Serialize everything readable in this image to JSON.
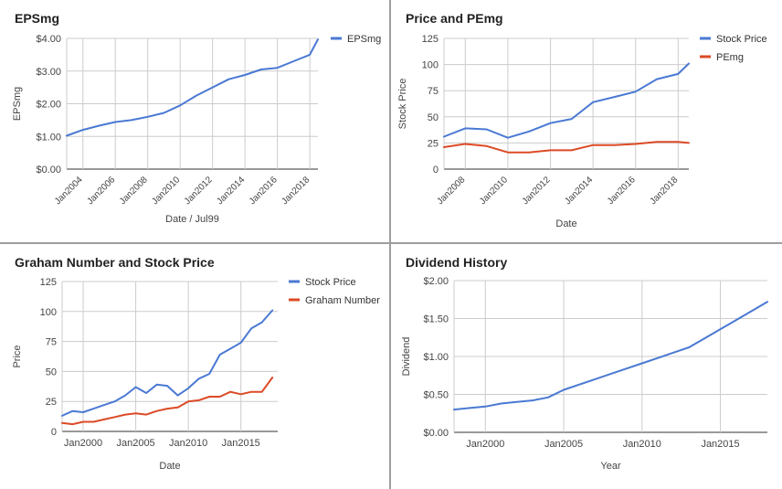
{
  "charts": [
    {
      "id": "eps",
      "title": "EPSmg",
      "chart_data": {
        "type": "line",
        "title": "EPSmg",
        "xlabel": "Date / Jul99",
        "ylabel": "EPSmg",
        "x_axis_kind": "date",
        "xlim": [
          2003.0,
          2018.5
        ],
        "ylim": [
          0,
          4
        ],
        "y_ticks": [
          0,
          1,
          2,
          3,
          4
        ],
        "y_tick_labels": [
          "$0.00",
          "$1.00",
          "$2.00",
          "$3.00",
          "$4.00"
        ],
        "x_ticks": [
          2004,
          2006,
          2008,
          2010,
          2012,
          2014,
          2016,
          2018
        ],
        "x_tick_labels": [
          "Jan2004",
          "Jan2006",
          "Jan2008",
          "Jan2010",
          "Jan2012",
          "Jan2014",
          "Jan2016",
          "Jan2018"
        ],
        "grid": true,
        "legend_position": "right",
        "series": [
          {
            "name": "EPSmg",
            "color": "#4a79d3",
            "x": [
              2003.0,
              2004.0,
              2005.0,
              2006.0,
              2007.0,
              2008.0,
              2009.0,
              2010.0,
              2011.0,
              2012.0,
              2013.0,
              2014.0,
              2015.0,
              2016.0,
              2017.0,
              2018.0,
              2018.5
            ],
            "y": [
              1.02,
              1.2,
              1.33,
              1.44,
              1.5,
              1.6,
              1.72,
              1.95,
              2.25,
              2.5,
              2.75,
              2.88,
              3.05,
              3.1,
              3.3,
              3.5,
              3.97
            ]
          }
        ]
      }
    },
    {
      "id": "price_pe",
      "title": "Price and PEmg",
      "chart_data": {
        "type": "line",
        "title": "Price and PEmg",
        "xlabel": "Date",
        "ylabel": "Stock Price",
        "x_axis_kind": "date",
        "xlim": [
          2007.0,
          2018.5
        ],
        "ylim": [
          0,
          125
        ],
        "y_ticks": [
          0,
          25,
          50,
          75,
          100,
          125
        ],
        "y_tick_labels": [
          "0",
          "25",
          "50",
          "75",
          "100",
          "125"
        ],
        "x_ticks": [
          2008,
          2010,
          2012,
          2014,
          2016,
          2018
        ],
        "x_tick_labels": [
          "Jan2008",
          "Jan2010",
          "Jan2012",
          "Jan2014",
          "Jan2016",
          "Jan2018"
        ],
        "grid": true,
        "legend_position": "right",
        "series": [
          {
            "name": "Stock Price",
            "color": "#4a79d3",
            "x": [
              2007.0,
              2008.0,
              2009.0,
              2010.0,
              2011.0,
              2012.0,
              2013.0,
              2014.0,
              2015.0,
              2016.0,
              2017.0,
              2018.0,
              2018.5
            ],
            "y": [
              31,
              39,
              38,
              30,
              36,
              44,
              48,
              64,
              69,
              74,
              86,
              91,
              101
            ]
          },
          {
            "name": "PEmg",
            "color": "#dc4a26",
            "x": [
              2007.0,
              2008.0,
              2009.0,
              2010.0,
              2011.0,
              2012.0,
              2013.0,
              2014.0,
              2015.0,
              2016.0,
              2017.0,
              2018.0,
              2018.5
            ],
            "y": [
              21,
              24,
              22,
              16,
              16,
              18,
              18,
              23,
              23,
              24,
              26,
              26,
              25
            ]
          }
        ]
      }
    },
    {
      "id": "graham",
      "title": "Graham Number and Stock Price",
      "chart_data": {
        "type": "line",
        "title": "Graham Number and Stock Price",
        "xlabel": "Date",
        "ylabel": "Price",
        "x_axis_kind": "date",
        "xlim": [
          1998.0,
          2018.5
        ],
        "ylim": [
          0,
          125
        ],
        "y_ticks": [
          0,
          25,
          50,
          75,
          100,
          125
        ],
        "y_tick_labels": [
          "0",
          "25",
          "50",
          "75",
          "100",
          "125"
        ],
        "x_ticks": [
          2000,
          2005,
          2010,
          2015
        ],
        "x_tick_labels": [
          "Jan2000",
          "Jan2005",
          "Jan2010",
          "Jan2015"
        ],
        "grid": true,
        "legend_position": "top-right",
        "series": [
          {
            "name": "Stock Price",
            "color": "#4a79d3",
            "x": [
              1998.0,
              1999.0,
              2000.0,
              2001.0,
              2002.0,
              2003.0,
              2004.0,
              2005.0,
              2006.0,
              2007.0,
              2008.0,
              2009.0,
              2010.0,
              2011.0,
              2012.0,
              2013.0,
              2014.0,
              2015.0,
              2016.0,
              2017.0,
              2018.0
            ],
            "y": [
              13,
              17,
              16,
              19,
              22,
              25,
              30,
              37,
              32,
              39,
              38,
              30,
              36,
              44,
              48,
              64,
              69,
              74,
              86,
              91,
              101
            ]
          },
          {
            "name": "Graham Number",
            "color": "#dc4a26",
            "x": [
              1998.0,
              1999.0,
              2000.0,
              2001.0,
              2002.0,
              2003.0,
              2004.0,
              2005.0,
              2006.0,
              2007.0,
              2008.0,
              2009.0,
              2010.0,
              2011.0,
              2012.0,
              2013.0,
              2014.0,
              2015.0,
              2016.0,
              2017.0,
              2018.0
            ],
            "y": [
              7,
              6,
              8,
              8,
              10,
              12,
              14,
              15,
              14,
              17,
              19,
              20,
              25,
              26,
              29,
              29,
              33,
              31,
              33,
              33,
              45
            ]
          }
        ]
      }
    },
    {
      "id": "dividend",
      "title": "Dividend History",
      "chart_data": {
        "type": "line",
        "title": "Dividend History",
        "xlabel": "Year",
        "ylabel": "Dividend",
        "x_axis_kind": "year",
        "xlim": [
          1998.0,
          2018.0
        ],
        "ylim": [
          0,
          2
        ],
        "y_ticks": [
          0,
          0.5,
          1,
          1.5,
          2
        ],
        "y_tick_labels": [
          "$0.00",
          "$0.50",
          "$1.00",
          "$1.50",
          "$2.00"
        ],
        "x_ticks": [
          2000,
          2005,
          2010,
          2015
        ],
        "x_tick_labels": [
          "Jan2000",
          "Jan2005",
          "Jan2010",
          "Jan2015"
        ],
        "grid": true,
        "legend_position": "none",
        "series": [
          {
            "color": "#4a79d3",
            "x": [
              1998.0,
              1999.0,
              2000.0,
              2001.0,
              2002.0,
              2003.0,
              2004.0,
              2005.0,
              2006.0,
              2007.0,
              2008.0,
              2009.0,
              2010.0,
              2011.0,
              2012.0,
              2013.0,
              2014.0,
              2015.0,
              2016.0,
              2017.0,
              2018.0
            ],
            "y": [
              0.3,
              0.32,
              0.34,
              0.38,
              0.4,
              0.42,
              0.46,
              0.56,
              0.63,
              0.7,
              0.77,
              0.84,
              0.91,
              0.98,
              1.05,
              1.12,
              1.24,
              1.36,
              1.48,
              1.6,
              1.72
            ]
          }
        ]
      }
    }
  ]
}
